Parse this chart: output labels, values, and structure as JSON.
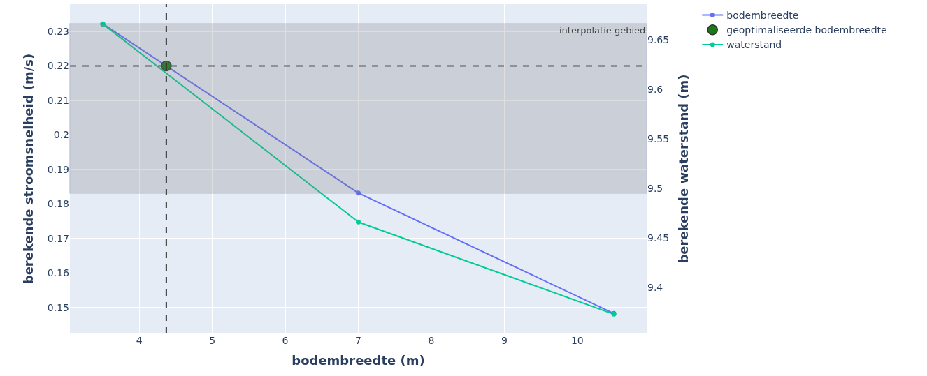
{
  "chart_data": {
    "type": "line",
    "xlabel": "bodembreedte (m)",
    "ylabel": "berekende stroomsnelheid (m/s)",
    "y2label": "berekende waterstand (m)",
    "series": [
      {
        "name": "bodembreedte",
        "color": "#636efa",
        "x": [
          3.5,
          7,
          10.5
        ],
        "values": [
          0.2322,
          0.1832,
          0.1483
        ]
      },
      {
        "name": "geoptimaliseerde bodembreedte",
        "type": "scatter",
        "color": "#1a7a1a",
        "x": [
          4.37
        ],
        "values": [
          0.22
        ]
      },
      {
        "name": "waterstand",
        "color": "#00cc96",
        "axis": "y2",
        "x": [
          3.5,
          7,
          10.5
        ],
        "values": [
          9.666,
          9.466,
          9.373
        ]
      }
    ],
    "xlim": [
      3.05,
      10.95
    ],
    "xticks": [
      4,
      5,
      6,
      7,
      8,
      9,
      10
    ],
    "ylim": [
      0.1425,
      0.2379
    ],
    "yticks": [
      0.15,
      0.16,
      0.17,
      0.18,
      0.19,
      0.2,
      0.21,
      0.22,
      0.23
    ],
    "y2lim": [
      9.3535,
      9.686
    ],
    "y2ticks": [
      9.4,
      9.45,
      9.5,
      9.55,
      9.6,
      9.65
    ],
    "ref_lines": [
      {
        "axis": "y",
        "value": 0.22,
        "line_style": "dashed",
        "color": "#555555"
      },
      {
        "axis": "x",
        "value": 4.37,
        "line_style": "dashed",
        "color": "#333333"
      }
    ],
    "bands": [
      {
        "axis": "y",
        "from": 0.1832,
        "to": 0.2322,
        "label": "interpolatie gebied",
        "color": "#808080"
      }
    ],
    "grid": true,
    "legend": "top right",
    "marker": "circle",
    "line_style": "solid"
  }
}
